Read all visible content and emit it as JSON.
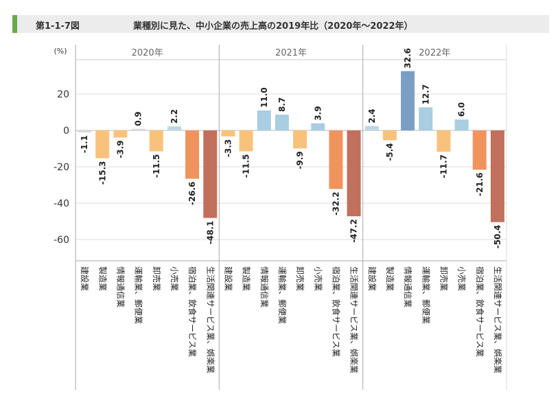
{
  "header": {
    "fig_id": "第1-1-7図",
    "title": "業種別に見た、中小企業の売上高の2019年比（2020年～2022年）"
  },
  "chart_data": {
    "type": "bar",
    "unit_label": "(%)",
    "ylim": [
      -72,
      33
    ],
    "yticks": [
      20,
      0,
      -20,
      -40,
      -60
    ],
    "categories": [
      "建設業",
      "製造業",
      "情報通信業",
      "運輸業、郵便業",
      "卸売業",
      "小売業",
      "宿泊業、飲食サービス業",
      "生活関連サービス業、娯楽業"
    ],
    "category_colors": [
      "#d9d9d9",
      "#f9c27c",
      "#f9c27c",
      "#bcd7e6",
      "#f9c27c",
      "#a9cde1",
      "#f0945d",
      "#c0705c"
    ],
    "panels": [
      {
        "title": "2020年",
        "values": [
          -1.1,
          -15.3,
          -3.9,
          0.9,
          -11.5,
          2.2,
          -26.6,
          -48.1
        ],
        "colors": [
          "#d9d9d9",
          "#f9c27c",
          "#f9c27c",
          "#d9d9d9",
          "#f9c27c",
          "#bcd7e6",
          "#f0945d",
          "#c0705c"
        ]
      },
      {
        "title": "2021年",
        "values": [
          -3.3,
          -11.5,
          11.0,
          8.7,
          -9.9,
          3.9,
          -32.2,
          -47.2
        ],
        "colors": [
          "#f9c27c",
          "#f9c27c",
          "#a9cde1",
          "#a9cde1",
          "#f9c27c",
          "#a9cde1",
          "#f0945d",
          "#c0705c"
        ]
      },
      {
        "title": "2022年",
        "values": [
          2.4,
          -5.4,
          32.6,
          12.7,
          -11.7,
          6.0,
          -21.6,
          -50.4
        ],
        "colors": [
          "#bcd7e6",
          "#f9c27c",
          "#7b9fc4",
          "#a9cde1",
          "#f9c27c",
          "#a9cde1",
          "#f0945d",
          "#c0705c"
        ]
      }
    ]
  }
}
